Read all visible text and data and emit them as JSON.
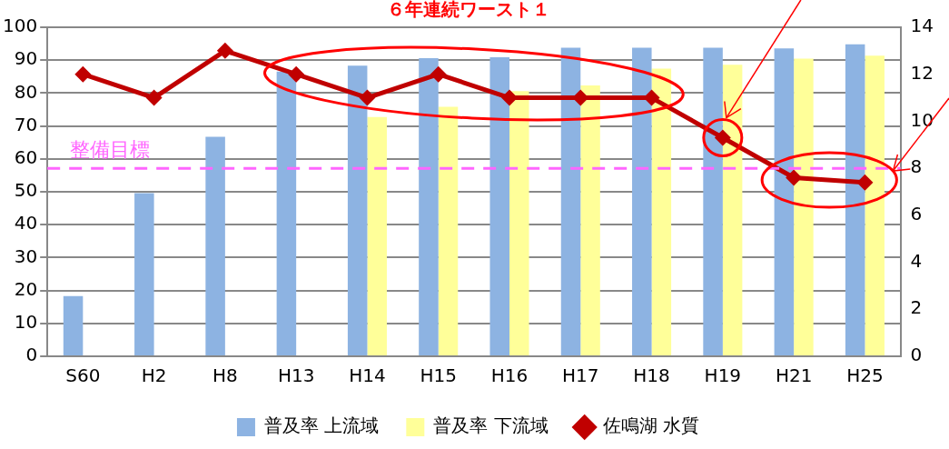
{
  "chart_data": {
    "type": "bar",
    "title": "６年連続ワースト１",
    "categories": [
      "S60",
      "H2",
      "H8",
      "H13",
      "H14",
      "H15",
      "H16",
      "H17",
      "H18",
      "H19",
      "H21",
      "H25"
    ],
    "series": [
      {
        "name": "普及率 上流域",
        "color": "#8db3e2",
        "values": [
          18.3,
          49.6,
          66.7,
          86.5,
          88.3,
          90.6,
          90.9,
          93.8,
          93.8,
          93.8,
          93.6,
          94.8
        ]
      },
      {
        "name": "普及率 下流域",
        "color": "#ffff99",
        "values": [
          null,
          null,
          null,
          null,
          72.7,
          75.8,
          80.6,
          82.3,
          87.4,
          88.6,
          90.5,
          91.4
        ]
      },
      {
        "name": "佐鳴湖 水質",
        "color": "#c00000",
        "type": "line",
        "axis": "y2",
        "values": [
          12,
          11,
          13,
          12,
          11,
          12,
          11,
          11,
          11,
          9.3,
          7.6,
          7.4
        ]
      }
    ],
    "ylim": [
      0,
      100
    ],
    "yticks": [
      0,
      10,
      20,
      30,
      40,
      50,
      60,
      70,
      80,
      90,
      100
    ],
    "y2lim": [
      0,
      14
    ],
    "y2ticks": [
      0,
      2,
      4,
      6,
      8,
      10,
      12,
      14
    ],
    "ref_lines": [
      {
        "axis": "y2",
        "value": 8,
        "label": "整備目標",
        "color": "#ff66ff",
        "line_style": "dashed"
      }
    ],
    "grid": "y",
    "legend": "bottom",
    "marker": "diamond",
    "line_style": "solid"
  }
}
